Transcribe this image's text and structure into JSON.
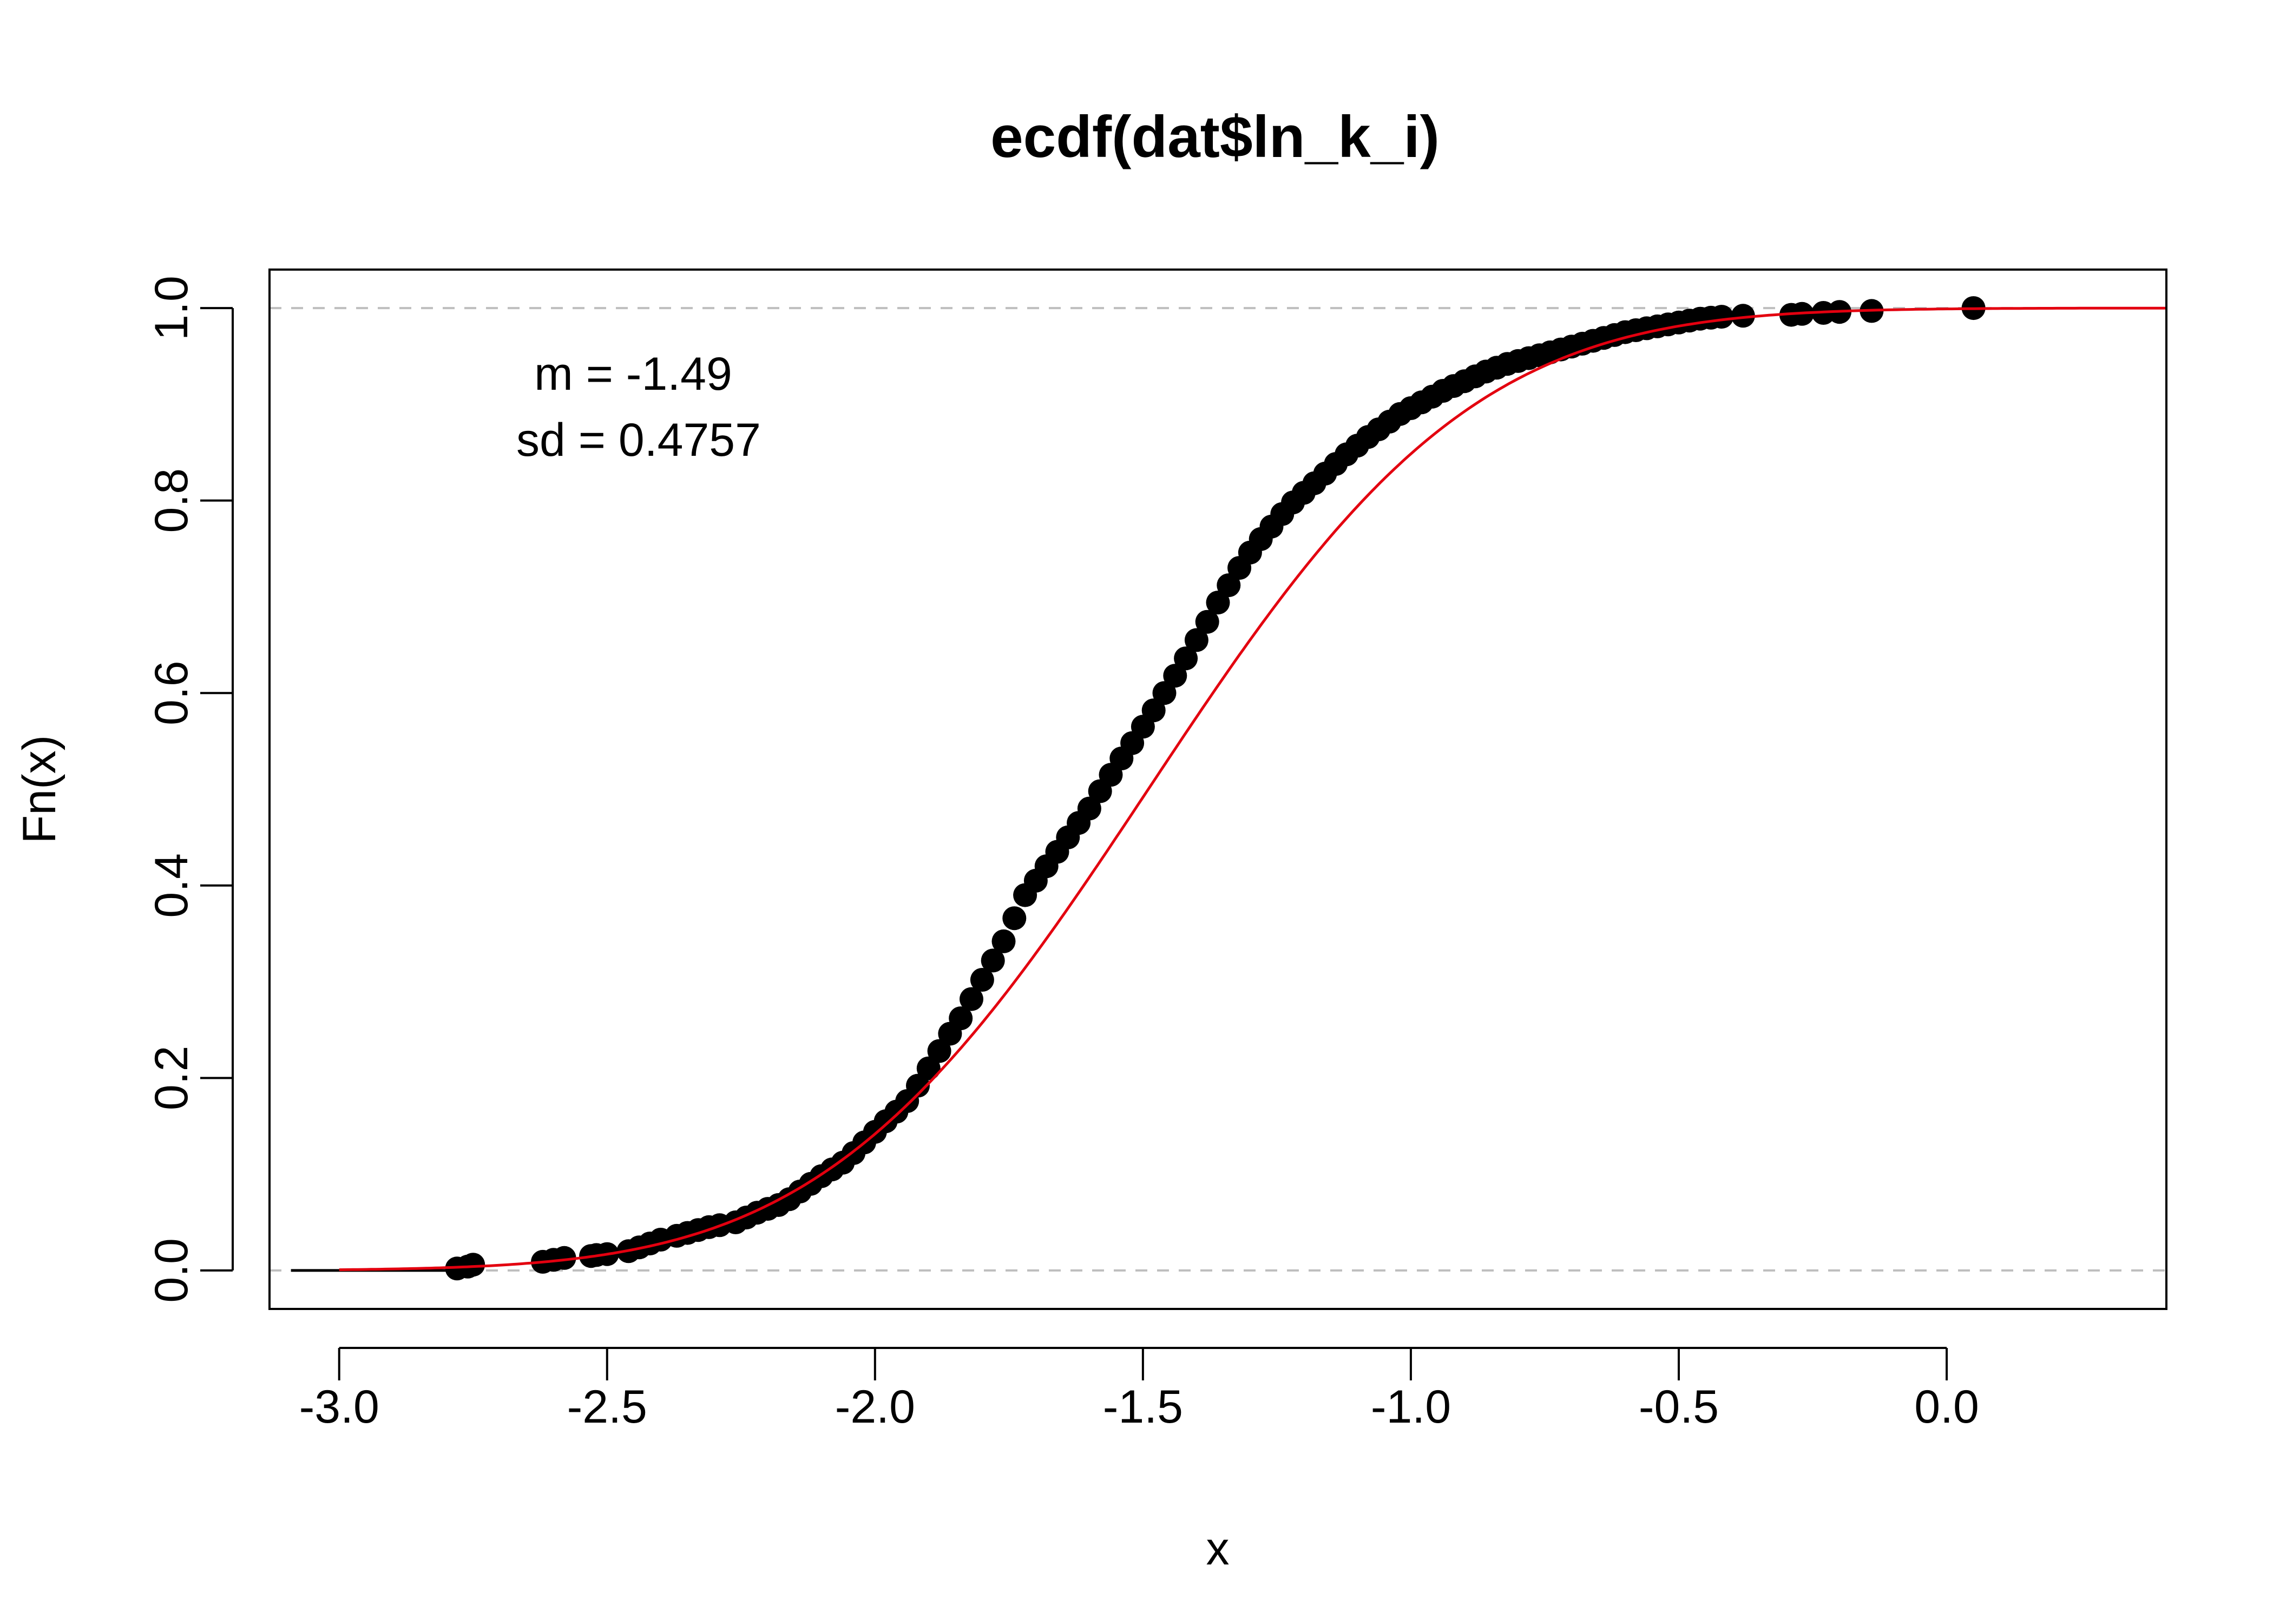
{
  "chart_data": {
    "type": "scatter",
    "title": "ecdf(dat$ln_k_i)",
    "xlabel": "x",
    "ylabel": "Fn(x)",
    "xlim": [
      -3.13,
      0.41
    ],
    "ylim": [
      -0.04,
      1.04
    ],
    "x_ticks": [
      -3.0,
      -2.5,
      -2.0,
      -1.5,
      -1.0,
      -0.5,
      0.0
    ],
    "x_tick_labels": [
      "-3.0",
      "-2.5",
      "-2.0",
      "-1.5",
      "-1.0",
      "-0.5",
      "0.0"
    ],
    "y_ticks": [
      0.0,
      0.2,
      0.4,
      0.6,
      0.8,
      1.0
    ],
    "y_tick_labels": [
      "0.0",
      "0.2",
      "0.4",
      "0.6",
      "0.8",
      "1.0"
    ],
    "grid": false,
    "reference_lines": [
      0,
      1
    ],
    "annotations": [
      "m = -1.49",
      "sd = 0.4757"
    ],
    "fitted_normal": {
      "mean": -1.49,
      "sd": 0.4757,
      "x_from": -3.0,
      "x_to": 0.41,
      "color": "#e3000f"
    },
    "ecdf_points": {
      "x": [
        -2.78,
        -2.76,
        -2.75,
        -2.62,
        -2.6,
        -2.58,
        -2.53,
        -2.52,
        -2.5,
        -2.46,
        -2.44,
        -2.42,
        -2.4,
        -2.37,
        -2.35,
        -2.33,
        -2.31,
        -2.29,
        -2.26,
        -2.24,
        -2.22,
        -2.2,
        -2.18,
        -2.16,
        -2.14,
        -2.12,
        -2.1,
        -2.08,
        -2.06,
        -2.04,
        -2.02,
        -2.0,
        -1.98,
        -1.96,
        -1.94,
        -1.92,
        -1.9,
        -1.88,
        -1.86,
        -1.84,
        -1.82,
        -1.8,
        -1.78,
        -1.76,
        -1.74,
        -1.72,
        -1.7,
        -1.68,
        -1.66,
        -1.64,
        -1.62,
        -1.6,
        -1.58,
        -1.56,
        -1.54,
        -1.52,
        -1.5,
        -1.48,
        -1.46,
        -1.44,
        -1.42,
        -1.4,
        -1.38,
        -1.36,
        -1.34,
        -1.32,
        -1.3,
        -1.28,
        -1.26,
        -1.24,
        -1.22,
        -1.2,
        -1.18,
        -1.16,
        -1.14,
        -1.12,
        -1.1,
        -1.08,
        -1.06,
        -1.04,
        -1.02,
        -1.0,
        -0.98,
        -0.96,
        -0.94,
        -0.92,
        -0.9,
        -0.88,
        -0.86,
        -0.84,
        -0.82,
        -0.8,
        -0.78,
        -0.76,
        -0.74,
        -0.72,
        -0.7,
        -0.68,
        -0.66,
        -0.64,
        -0.62,
        -0.6,
        -0.58,
        -0.56,
        -0.54,
        -0.52,
        -0.5,
        -0.48,
        -0.46,
        -0.44,
        -0.42,
        -0.38,
        -0.29,
        -0.27,
        -0.23,
        -0.2,
        -0.14,
        0.05
      ],
      "y": [
        0.002,
        0.004,
        0.006,
        0.009,
        0.011,
        0.013,
        0.015,
        0.016,
        0.017,
        0.02,
        0.024,
        0.028,
        0.032,
        0.036,
        0.039,
        0.042,
        0.045,
        0.047,
        0.05,
        0.055,
        0.06,
        0.064,
        0.068,
        0.074,
        0.082,
        0.09,
        0.098,
        0.105,
        0.112,
        0.122,
        0.133,
        0.144,
        0.155,
        0.165,
        0.176,
        0.192,
        0.21,
        0.228,
        0.246,
        0.262,
        0.282,
        0.302,
        0.322,
        0.342,
        0.366,
        0.39,
        0.405,
        0.42,
        0.435,
        0.45,
        0.465,
        0.48,
        0.498,
        0.515,
        0.532,
        0.548,
        0.565,
        0.582,
        0.6,
        0.618,
        0.636,
        0.655,
        0.674,
        0.694,
        0.712,
        0.73,
        0.746,
        0.76,
        0.773,
        0.786,
        0.798,
        0.808,
        0.818,
        0.828,
        0.838,
        0.848,
        0.857,
        0.866,
        0.874,
        0.882,
        0.89,
        0.896,
        0.902,
        0.908,
        0.914,
        0.919,
        0.924,
        0.929,
        0.934,
        0.938,
        0.942,
        0.945,
        0.948,
        0.951,
        0.954,
        0.957,
        0.96,
        0.963,
        0.966,
        0.969,
        0.972,
        0.975,
        0.977,
        0.979,
        0.981,
        0.983,
        0.985,
        0.987,
        0.989,
        0.99,
        0.991,
        0.992,
        0.993,
        0.994,
        0.995,
        0.996,
        0.997,
        1.0
      ]
    },
    "colors": {
      "points": "#000000",
      "curve": "#e3000f",
      "reference": "#bebebe"
    }
  }
}
